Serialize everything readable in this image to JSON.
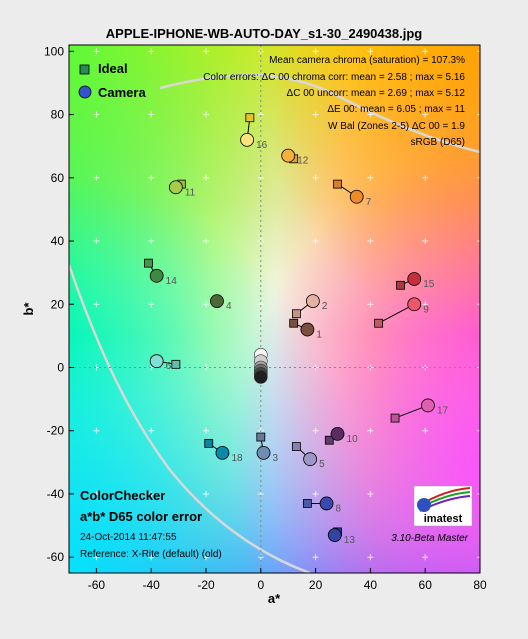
{
  "chart_data": {
    "type": "scatter",
    "title": "APPLE-IPHONE-WB-AUTO-DAY_s1-30_2490438.jpg",
    "xlabel": "a*",
    "ylabel": "b*",
    "xlim": [
      -70,
      80
    ],
    "ylim": [
      -65,
      102
    ],
    "xticks": [
      -60,
      -40,
      -20,
      0,
      20,
      40,
      60,
      80
    ],
    "yticks": [
      -60,
      -40,
      -20,
      0,
      20,
      40,
      60,
      80,
      100
    ],
    "grid": "dotted crosses",
    "legend": {
      "placement": "top-left",
      "items": [
        {
          "name": "Ideal",
          "marker": "square"
        },
        {
          "name": "Camera",
          "marker": "circle"
        }
      ]
    },
    "annotations": {
      "top_right": [
        "Mean camera chroma (saturation) = 107.3%",
        "Color errors: ΔC 00 chroma corr:  mean = 2.58 ;  max = 5.16",
        "ΔC 00 uncorr:  mean = 2.69 ;  max = 5.12",
        "ΔE 00:  mean = 6.05 ;  max = 11",
        "W Bal (Zones 2-5) ΔC 00 = 1.9",
        "sRGB (D65)"
      ],
      "bottom_left": [
        "ColorChecker",
        "a*b* D65 color error",
        "24-Oct-2014 11:47:55",
        "Reference: X-Rite (default) (old)"
      ],
      "bottom_right": "3.10-Beta  Master",
      "logo": "imatest"
    },
    "series": [
      {
        "name": "Ideal",
        "points": [
          {
            "label": "1",
            "x": 12,
            "y": 14,
            "color": "#735244"
          },
          {
            "label": "2",
            "x": 13,
            "y": 17,
            "color": "#c29682"
          },
          {
            "label": "3",
            "x": 0,
            "y": -22,
            "color": "#627a9d"
          },
          {
            "label": "4",
            "x": -16,
            "y": 21,
            "color": "#576c43"
          },
          {
            "label": "5",
            "x": 13,
            "y": -25,
            "color": "#8580b1"
          },
          {
            "label": "6",
            "x": -31,
            "y": 1,
            "color": "#67bdaa"
          },
          {
            "label": "7",
            "x": 28,
            "y": 58,
            "color": "#d67e2c"
          },
          {
            "label": "8",
            "x": 17,
            "y": -43,
            "color": "#505ba6"
          },
          {
            "label": "9",
            "x": 43,
            "y": 14,
            "color": "#c15a63"
          },
          {
            "label": "10",
            "x": 25,
            "y": -23,
            "color": "#5e3c6c"
          },
          {
            "label": "11",
            "x": -29,
            "y": 58,
            "color": "#9dbc40"
          },
          {
            "label": "12",
            "x": 12,
            "y": 66,
            "color": "#e0a32e"
          },
          {
            "label": "13",
            "x": 28,
            "y": -52,
            "color": "#383d96"
          },
          {
            "label": "14",
            "x": -41,
            "y": 33,
            "color": "#469449"
          },
          {
            "label": "15",
            "x": 51,
            "y": 26,
            "color": "#af363c"
          },
          {
            "label": "16",
            "x": -4,
            "y": 79,
            "color": "#e7c71f"
          },
          {
            "label": "17",
            "x": 49,
            "y": -16,
            "color": "#bb5695"
          },
          {
            "label": "18",
            "x": -19,
            "y": -24,
            "color": "#0885a1"
          }
        ]
      },
      {
        "name": "Camera",
        "points": [
          {
            "label": "1",
            "x": 17,
            "y": 12,
            "color": "#7a4e40"
          },
          {
            "label": "2",
            "x": 19,
            "y": 21,
            "color": "#e2b3a0"
          },
          {
            "label": "3",
            "x": 1,
            "y": -27,
            "color": "#6f8db0"
          },
          {
            "label": "4",
            "x": -16,
            "y": 21,
            "color": "#4d6a36"
          },
          {
            "label": "5",
            "x": 18,
            "y": -29,
            "color": "#9d97c9"
          },
          {
            "label": "6",
            "x": -38,
            "y": 2,
            "color": "#7fe0d3"
          },
          {
            "label": "7",
            "x": 35,
            "y": 54,
            "color": "#ee8a2a"
          },
          {
            "label": "8",
            "x": 24,
            "y": -43,
            "color": "#3a48b0"
          },
          {
            "label": "9",
            "x": 56,
            "y": 20,
            "color": "#f0566a"
          },
          {
            "label": "10",
            "x": 28,
            "y": -21,
            "color": "#5a2c62"
          },
          {
            "label": "11",
            "x": -31,
            "y": 57,
            "color": "#a8cc4a"
          },
          {
            "label": "12",
            "x": 10,
            "y": 67,
            "color": "#f7b03a"
          },
          {
            "label": "13",
            "x": 27,
            "y": -53,
            "color": "#3344a4"
          },
          {
            "label": "14",
            "x": -38,
            "y": 29,
            "color": "#3d8a42"
          },
          {
            "label": "15",
            "x": 56,
            "y": 28,
            "color": "#c6303c"
          },
          {
            "label": "16",
            "x": -5,
            "y": 72,
            "color": "#fce27a"
          },
          {
            "label": "17",
            "x": 61,
            "y": -12,
            "color": "#e05fb1"
          },
          {
            "label": "18",
            "x": -14,
            "y": -27,
            "color": "#0a8aa8"
          }
        ]
      },
      {
        "name": "Neutrals",
        "points": [
          {
            "x": 0,
            "y": 4,
            "color": "#f4f4f4"
          },
          {
            "x": 0,
            "y": 2,
            "color": "#cfcfcf"
          },
          {
            "x": 0,
            "y": 0,
            "color": "#a0a0a0"
          },
          {
            "x": 0,
            "y": -1,
            "color": "#707070"
          },
          {
            "x": 0,
            "y": -2,
            "color": "#454545"
          },
          {
            "x": 0,
            "y": -3,
            "color": "#1f1f1f"
          }
        ]
      }
    ]
  }
}
